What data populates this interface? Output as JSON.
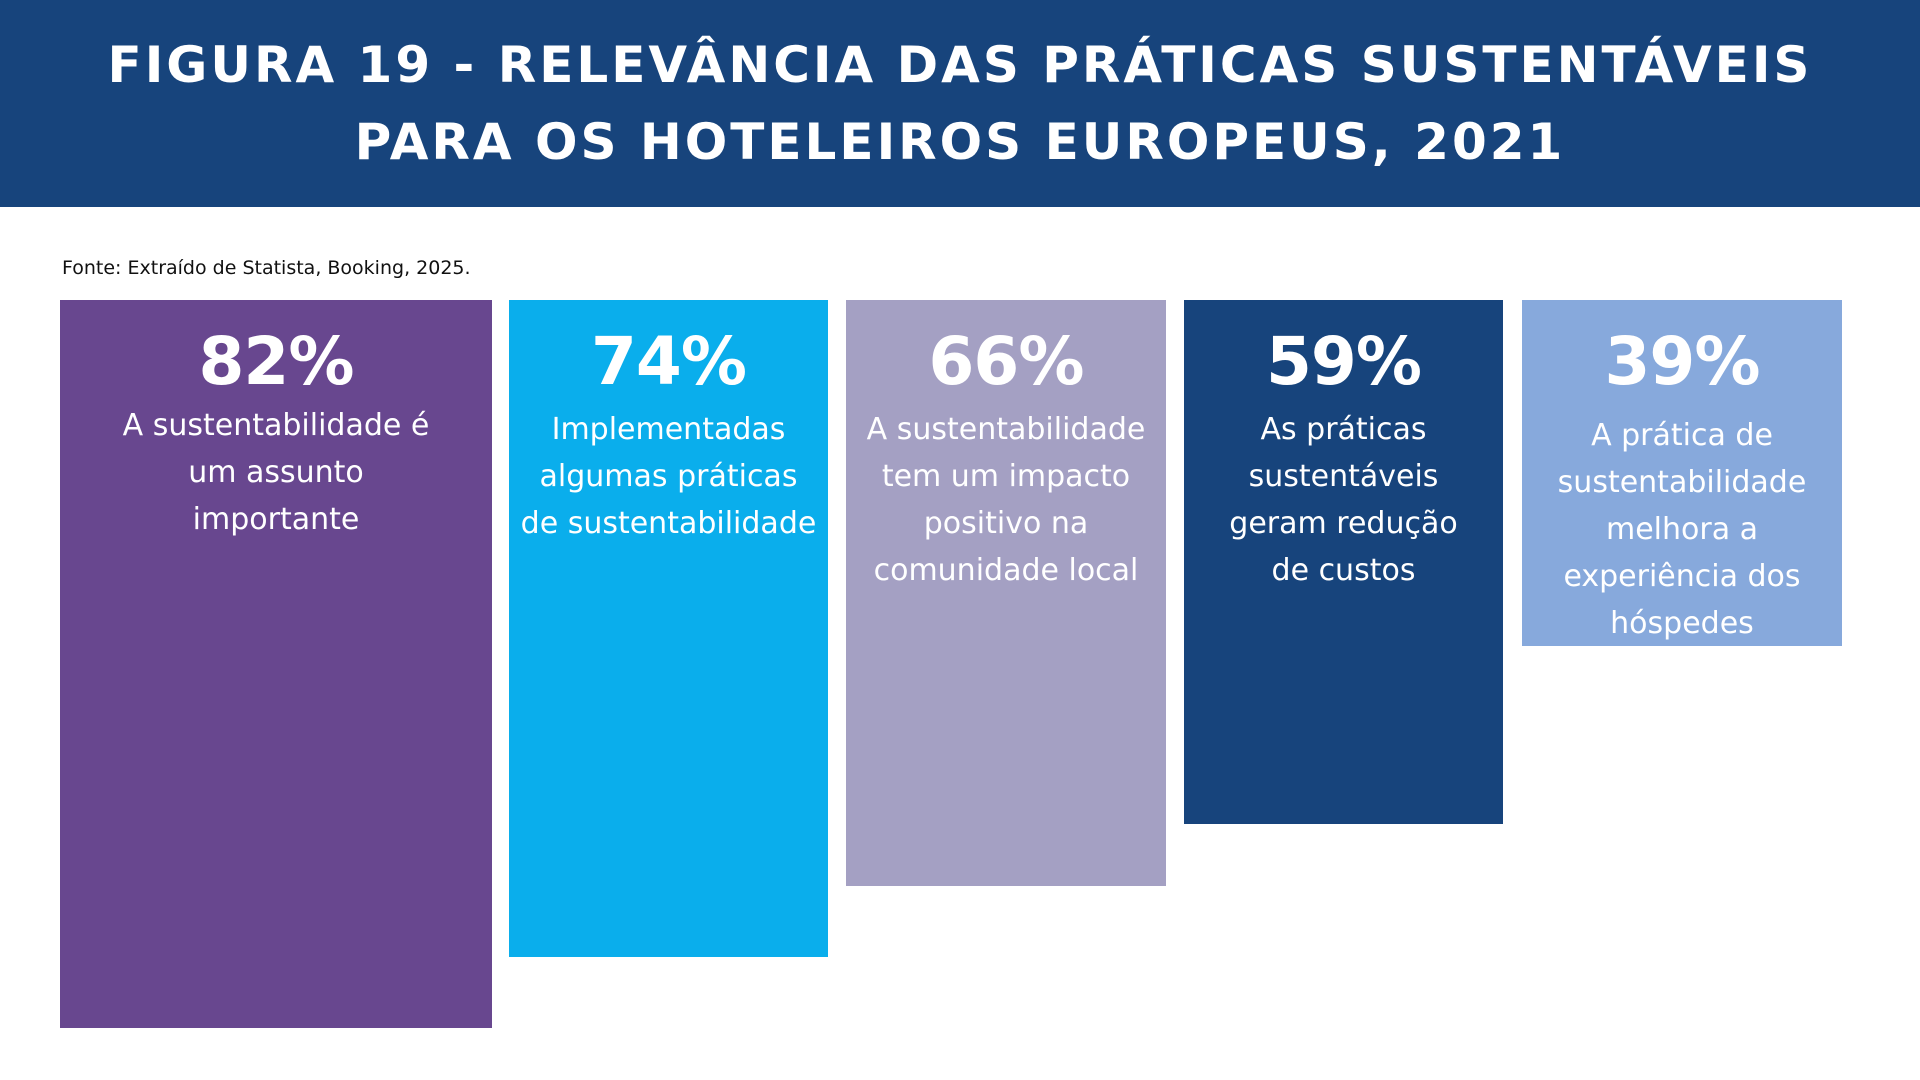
{
  "header": {
    "title": "FIGURA 19 - RELEVÂNCIA DAS PRÁTICAS SUSTENTÁVEIS PARA OS HOTELEIROS EUROPEUS, 2021"
  },
  "source": "Fonte: Extraído de Statista, Booking, 2025.",
  "chart_data": {
    "type": "bar",
    "title": "FIGURA 19 - RELEVÂNCIA DAS PRÁTICAS SUSTENTÁVEIS PARA OS HOTELEIROS EUROPEUS, 2021",
    "xlabel": "",
    "ylabel": "",
    "ylim": [
      0,
      100
    ],
    "grid": false,
    "categories": [
      "A sustentabilidade é um assunto importante",
      "Implementadas algumas práticas de sustentabilidade",
      "A sustentabilidade tem um impacto positivo na comunidade local",
      "As práticas sustentáveis geram redução de custos",
      "A prática de sustentabilidade melhora a experiência dos hóspedes"
    ],
    "values": [
      82,
      74,
      66,
      59,
      39
    ],
    "value_labels": [
      "82%",
      "74%",
      "66%",
      "59%",
      "39%"
    ],
    "colors": [
      "#68478f",
      "#0aaeec",
      "#a4a0c3",
      "#17447c",
      "#87a9dc"
    ]
  }
}
